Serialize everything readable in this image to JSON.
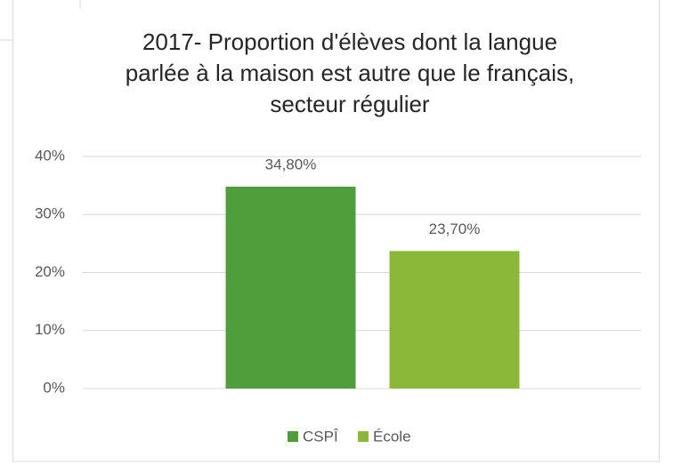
{
  "chart_data": {
    "type": "bar",
    "title": [
      "2017- Proportion d'élèves dont la langue",
      "parlée à la maison est autre que le français,",
      "secteur régulier"
    ],
    "categories": [
      null
    ],
    "series": [
      {
        "name": "CSPÎ",
        "color": "#4f9e3b",
        "values": [
          34.8
        ],
        "value_labels": [
          "34,80%"
        ]
      },
      {
        "name": "École",
        "color": "#8cb83a",
        "values": [
          23.7
        ],
        "value_labels": [
          "23,70%"
        ]
      }
    ],
    "ylim": [
      0,
      40
    ],
    "yticks": [
      {
        "value": 0,
        "label": "0%"
      },
      {
        "value": 10,
        "label": "10%"
      },
      {
        "value": 20,
        "label": "20%"
      },
      {
        "value": 30,
        "label": "30%"
      },
      {
        "value": 40,
        "label": "40%"
      }
    ],
    "grid": true,
    "legend": "bottom"
  }
}
